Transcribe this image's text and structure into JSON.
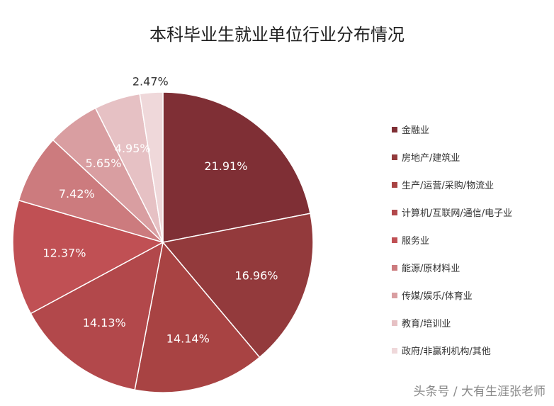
{
  "chart_data": {
    "type": "pie",
    "title": "本科毕业生就业单位行业分布情况",
    "categories": [
      "金融业",
      "房地产/建筑业",
      "生产/运营/采购/物流业",
      "计算机/互联网/通信/电子业",
      "服务业",
      "能源/原材料业",
      "传媒/娱乐/体育业",
      "教育/培训业",
      "政府/非赢利机构/其他"
    ],
    "values": [
      21.91,
      16.96,
      14.14,
      14.13,
      12.37,
      7.42,
      5.65,
      4.95,
      2.47
    ],
    "data_labels": [
      "21.91%",
      "16.96%",
      "14.14%",
      "14.13%",
      "12.37%",
      "7.42%",
      "5.65%",
      "4.95%",
      "2.47%"
    ],
    "colors": [
      "#7f2f35",
      "#933a3c",
      "#a84343",
      "#b2484b",
      "#c05054",
      "#cc7b7e",
      "#d99ea1",
      "#e6c1c4",
      "#efd8da"
    ],
    "legend_position": "right",
    "start_angle": "12 o'clock, clockwise"
  },
  "watermark": "头条号 / 大有生涯张老师"
}
